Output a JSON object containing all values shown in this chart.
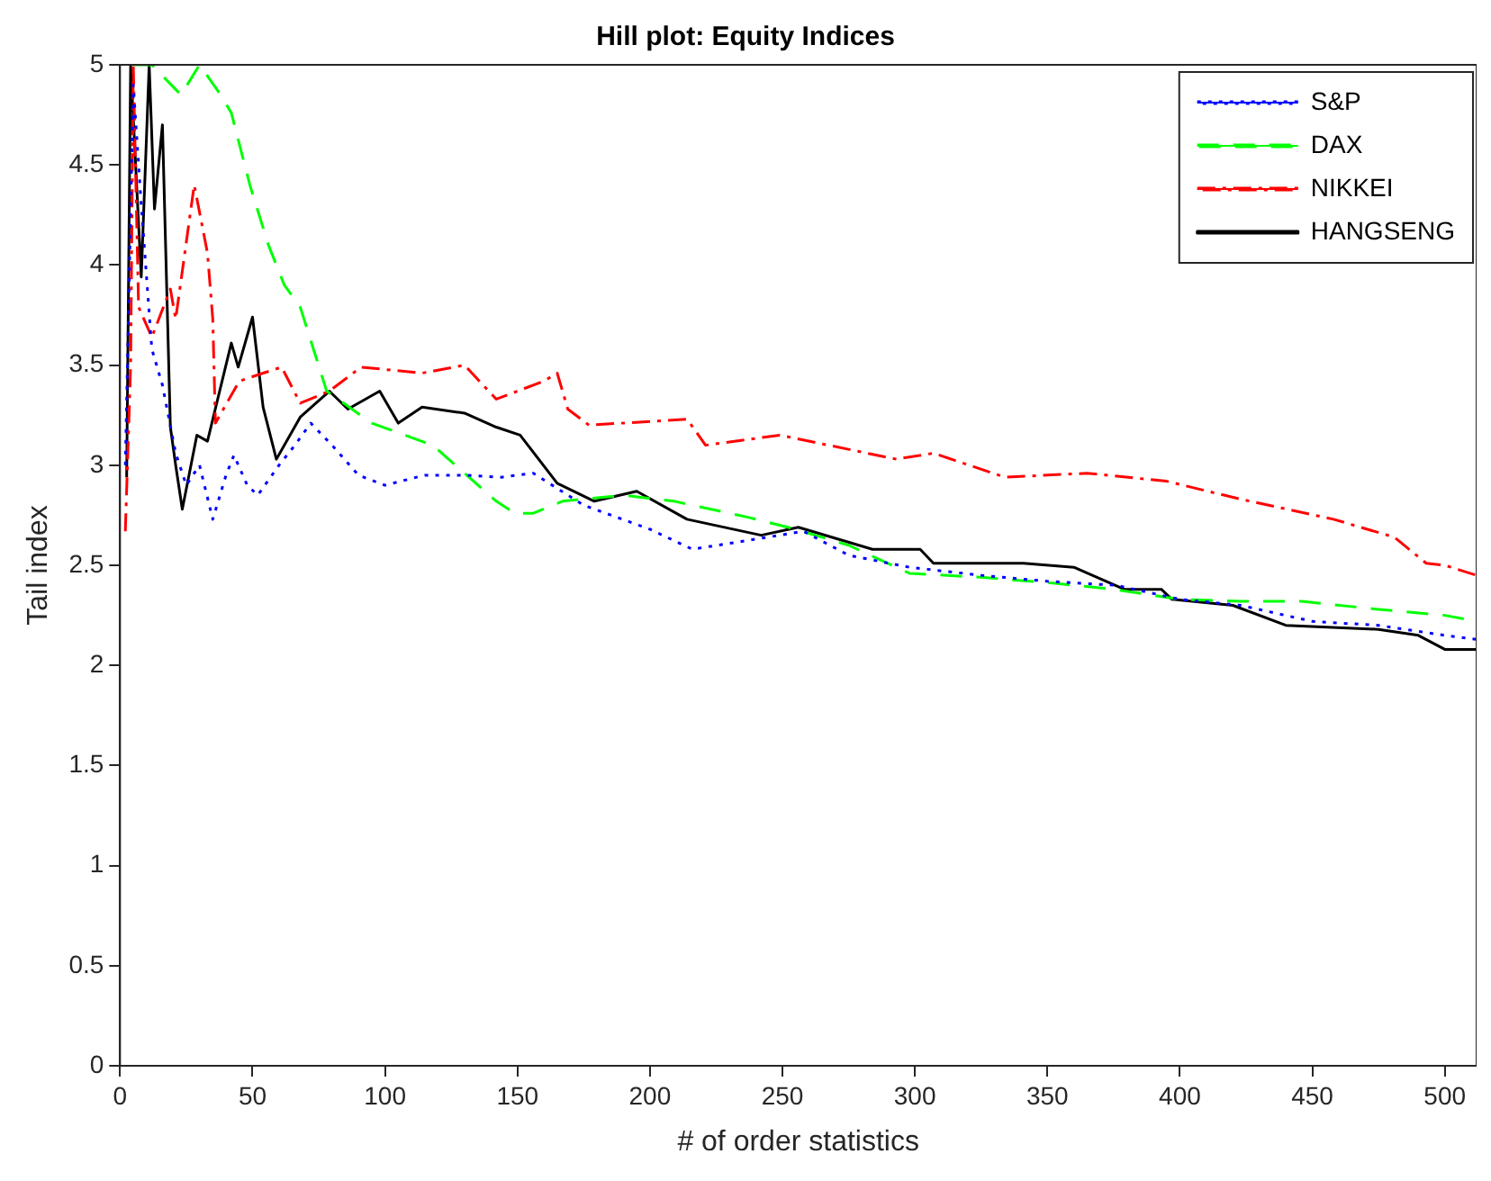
{
  "chart_data": {
    "type": "line",
    "title": "Hill plot: Equity Indices",
    "xlabel": "# of order statistics",
    "ylabel": "Tail index",
    "xlim": [
      0,
      512
    ],
    "xticks": [
      0,
      50,
      100,
      150,
      200,
      250,
      300,
      350,
      400,
      450,
      500
    ],
    "ylim": [
      0,
      5
    ],
    "yticks": [
      0,
      0.5,
      1,
      1.5,
      2,
      2.5,
      3,
      3.5,
      4,
      4.5,
      5
    ],
    "grid": false,
    "legend": "top right",
    "marker": "none",
    "series": [
      {
        "name": "S&P",
        "color": "#0000ff",
        "line_style": "dotted",
        "x": [
          2,
          5,
          8,
          12,
          16,
          21,
          25,
          30,
          35,
          40,
          43,
          48,
          52,
          60,
          66,
          72,
          80,
          90,
          100,
          115,
          130,
          144,
          156,
          175,
          200,
          216,
          235,
          258,
          275,
          298,
          325,
          350,
          376,
          400,
          423,
          450,
          475,
          500,
          512
        ],
        "values": [
          3.0,
          4.9,
          4.3,
          3.58,
          3.4,
          3.06,
          2.9,
          3.0,
          2.73,
          2.95,
          3.05,
          2.9,
          2.85,
          3.0,
          3.1,
          3.21,
          3.1,
          2.95,
          2.9,
          2.95,
          2.95,
          2.94,
          2.96,
          2.8,
          2.68,
          2.58,
          2.62,
          2.67,
          2.55,
          2.49,
          2.45,
          2.42,
          2.4,
          2.33,
          2.3,
          2.22,
          2.2,
          2.15,
          2.13
        ]
      },
      {
        "name": "DAX",
        "color": "#00ff00",
        "line_style": "dashed",
        "x": [
          5,
          12,
          23,
          30,
          38,
          42,
          49,
          56,
          62,
          68,
          78,
          95,
          118,
          142,
          149,
          156,
          167,
          190,
          209,
          237,
          255,
          275,
          298,
          325,
          353,
          375,
          400,
          423,
          446,
          475,
          500,
          512
        ],
        "values": [
          5,
          5,
          4.85,
          5,
          4.85,
          4.76,
          4.4,
          4.1,
          3.9,
          3.79,
          3.37,
          3.21,
          3.1,
          2.82,
          2.76,
          2.76,
          2.82,
          2.85,
          2.82,
          2.74,
          2.68,
          2.6,
          2.46,
          2.44,
          2.41,
          2.38,
          2.33,
          2.32,
          2.32,
          2.28,
          2.25,
          2.22
        ]
      },
      {
        "name": "NIKKEI",
        "color": "#ff0000",
        "line_style": "dashdot",
        "x": [
          2,
          4,
          5,
          7,
          12,
          19,
          21,
          28,
          33,
          35,
          36,
          45,
          54,
          61,
          68,
          79,
          91,
          114,
          130,
          142,
          160,
          165,
          169,
          177,
          214,
          221,
          249,
          293,
          307,
          334,
          365,
          395,
          423,
          458,
          481,
          493,
          500,
          512
        ],
        "values": [
          2.67,
          3.5,
          5,
          3.79,
          3.64,
          3.88,
          3.73,
          4.4,
          4.06,
          3.73,
          3.21,
          3.42,
          3.46,
          3.49,
          3.31,
          3.37,
          3.49,
          3.46,
          3.5,
          3.33,
          3.42,
          3.46,
          3.28,
          3.2,
          3.23,
          3.1,
          3.15,
          3.03,
          3.06,
          2.94,
          2.96,
          2.92,
          2.83,
          2.73,
          2.64,
          2.51,
          2.5,
          2.45
        ]
      },
      {
        "name": "HANGSENG",
        "color": "#000000",
        "line_style": "solid",
        "x": [
          2.5,
          4,
          8,
          11,
          13,
          16,
          19,
          21,
          23.5,
          29,
          33,
          42,
          44.6,
          50,
          54,
          59,
          68,
          79,
          86,
          98,
          105,
          114,
          130,
          142,
          151,
          165,
          179,
          195,
          214,
          242,
          256,
          284,
          302,
          307,
          341,
          360,
          379,
          393,
          397,
          420,
          440,
          475,
          490,
          500,
          512
        ],
        "values": [
          2.94,
          5,
          3.94,
          5,
          4.28,
          4.7,
          3.19,
          3.0,
          2.78,
          3.15,
          3.12,
          3.61,
          3.49,
          3.74,
          3.29,
          3.03,
          3.24,
          3.37,
          3.28,
          3.37,
          3.21,
          3.29,
          3.26,
          3.19,
          3.15,
          2.91,
          2.82,
          2.87,
          2.73,
          2.65,
          2.69,
          2.58,
          2.58,
          2.51,
          2.51,
          2.49,
          2.38,
          2.38,
          2.33,
          2.3,
          2.2,
          2.18,
          2.15,
          2.08,
          2.08
        ]
      }
    ]
  }
}
